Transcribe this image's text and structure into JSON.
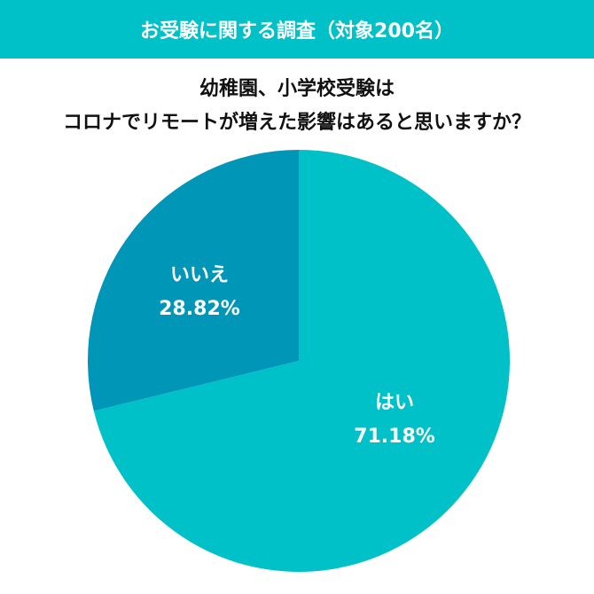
{
  "header": {
    "title": "お受験に関する調査（対象200名）"
  },
  "question": {
    "line1": "幼稚園、小学校受験は",
    "line2": "コロナでリモートが増えた影響はあると思いますか？"
  },
  "colors": {
    "banner": "#00c0c8",
    "yes": "#00c0c8",
    "no": "#0096b8"
  },
  "chart_data": {
    "type": "pie",
    "title": "幼稚園、小学校受験はコロナでリモートが増えた影響はあると思いますか？",
    "categories": [
      "はい",
      "いいえ"
    ],
    "values": [
      71.18,
      28.82
    ],
    "labels": [
      {
        "name": "はい",
        "value": "71.18%"
      },
      {
        "name": "いいえ",
        "value": "28.82%"
      }
    ],
    "legend": "none (labels inside slices)"
  }
}
